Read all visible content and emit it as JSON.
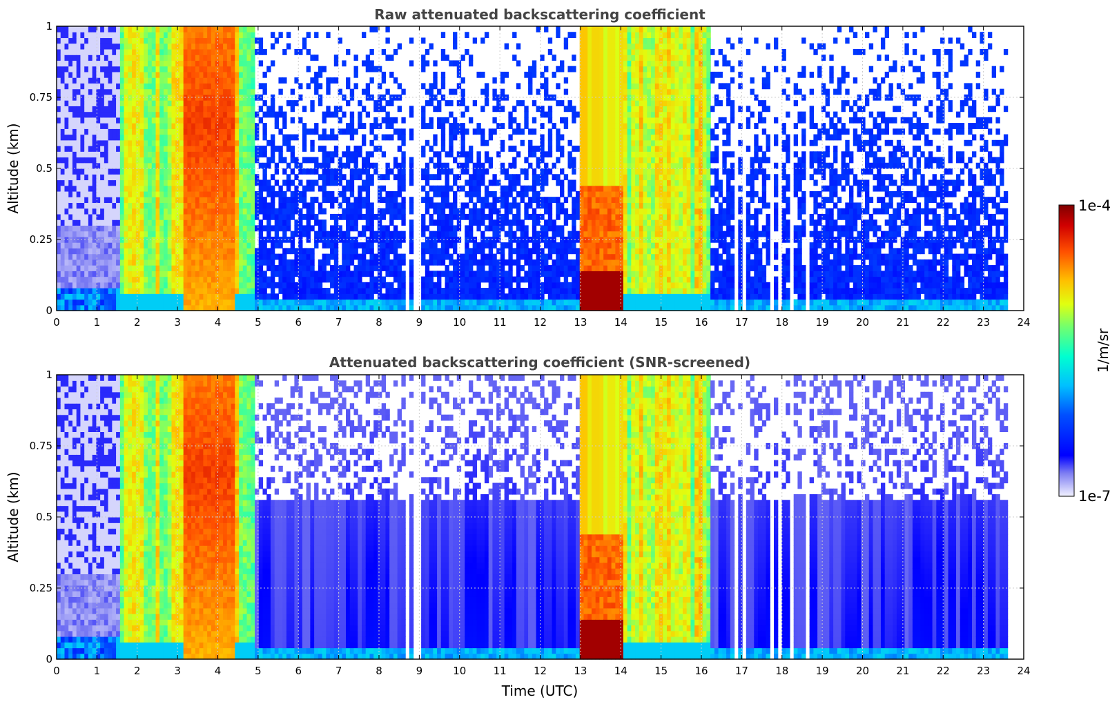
{
  "chart_data": [
    {
      "type": "heatmap",
      "title": "Raw attenuated backscattering coefficient",
      "xlabel": "",
      "ylabel": "Altitude (km)",
      "xlim": [
        0,
        24
      ],
      "ylim": [
        0,
        1
      ],
      "x_ticks": [
        "0",
        "1",
        "2",
        "3",
        "4",
        "5",
        "6",
        "7",
        "8",
        "9",
        "10",
        "11",
        "12",
        "13",
        "14",
        "15",
        "16",
        "17",
        "18",
        "19",
        "20",
        "21",
        "22",
        "23",
        "24"
      ],
      "y_ticks": [
        "0",
        "0.25",
        "0.5",
        "0.75",
        "1"
      ],
      "grid": true,
      "data_end_hour": 23.6,
      "segments": [
        {
          "start": 0.0,
          "end": 1.6,
          "regime": "clear_low_signal"
        },
        {
          "start": 1.6,
          "end": 3.1,
          "regime": "cloud_moderate"
        },
        {
          "start": 3.1,
          "end": 4.4,
          "regime": "cloud_strong"
        },
        {
          "start": 4.4,
          "end": 4.95,
          "regime": "cloud_moderate"
        },
        {
          "start": 4.95,
          "end": 12.95,
          "regime": "background"
        },
        {
          "start": 12.95,
          "end": 14.1,
          "regime": "cloud_very_strong_low"
        },
        {
          "start": 14.1,
          "end": 16.2,
          "regime": "cloud_moderate"
        },
        {
          "start": 16.2,
          "end": 23.6,
          "regime": "background"
        }
      ],
      "gaps": [
        [
          8.42,
          8.5
        ],
        [
          8.62,
          8.72
        ],
        [
          8.88,
          9.0
        ],
        [
          16.82,
          16.88
        ],
        [
          17.05,
          17.1
        ],
        [
          17.28,
          17.33
        ],
        [
          17.72,
          17.78
        ],
        [
          17.92,
          17.97
        ],
        [
          18.2,
          18.26
        ],
        [
          18.6,
          18.66
        ]
      ]
    },
    {
      "type": "heatmap",
      "title": "Attenuated backscattering coefficient (SNR-screened)",
      "xlabel": "Time (UTC)",
      "ylabel": "Altitude (km)",
      "xlim": [
        0,
        24
      ],
      "ylim": [
        0,
        1
      ],
      "x_ticks": [
        "0",
        "1",
        "2",
        "3",
        "4",
        "5",
        "6",
        "7",
        "8",
        "9",
        "10",
        "11",
        "12",
        "13",
        "14",
        "15",
        "16",
        "17",
        "18",
        "19",
        "20",
        "21",
        "22",
        "23",
        "24"
      ],
      "y_ticks": [
        "0",
        "0.25",
        "0.5",
        "0.75",
        "1"
      ],
      "grid": true,
      "data_end_hour": 23.6,
      "screened": true
    }
  ],
  "colorbar": {
    "label": "1/m/sr",
    "max_label": "1e-4",
    "min_label": "1e-7",
    "scale": "log",
    "colormap": "jet"
  }
}
